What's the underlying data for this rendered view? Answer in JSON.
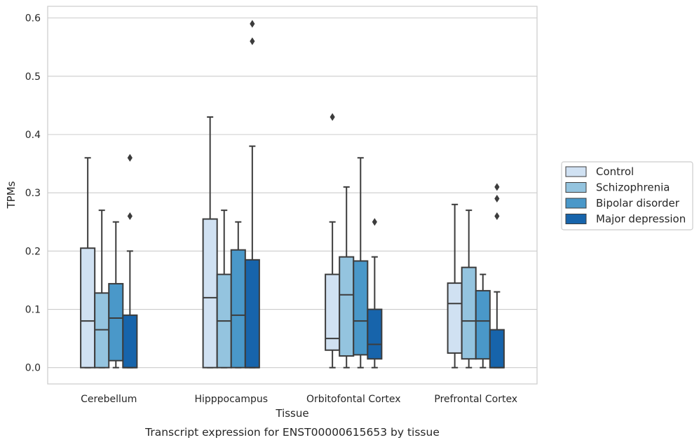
{
  "chart_data": {
    "type": "boxplot",
    "title": "",
    "caption": "Transcript expression for ENST00000615653 by tissue",
    "xlabel": "Tissue",
    "ylabel": "TPMs",
    "ylim": [
      -0.028,
      0.62
    ],
    "yticks": [
      0.0,
      0.1,
      0.2,
      0.3,
      0.4,
      0.5,
      0.6
    ],
    "ytick_labels": [
      "0.0",
      "0.1",
      "0.2",
      "0.3",
      "0.4",
      "0.5",
      "0.6"
    ],
    "grid": "horizontal",
    "legend_position": "right",
    "categories": [
      "Cerebellum",
      "Hipppocampus",
      "Orbitofontal Cortex",
      "Prefrontal Cortex"
    ],
    "series": [
      {
        "name": "Control",
        "color": "#d0e1f2",
        "boxes": [
          {
            "whislo": 0.0,
            "q1": 0.0,
            "med": 0.08,
            "q3": 0.205,
            "whishi": 0.36,
            "fliers": []
          },
          {
            "whislo": 0.0,
            "q1": 0.0,
            "med": 0.12,
            "q3": 0.255,
            "whishi": 0.43,
            "fliers": []
          },
          {
            "whislo": 0.0,
            "q1": 0.03,
            "med": 0.05,
            "q3": 0.16,
            "whishi": 0.25,
            "fliers": [
              0.43
            ]
          },
          {
            "whislo": 0.0,
            "q1": 0.025,
            "med": 0.11,
            "q3": 0.145,
            "whishi": 0.28,
            "fliers": []
          }
        ]
      },
      {
        "name": "Schizophrenia",
        "color": "#94c4df",
        "boxes": [
          {
            "whislo": 0.0,
            "q1": 0.0,
            "med": 0.065,
            "q3": 0.128,
            "whishi": 0.27,
            "fliers": []
          },
          {
            "whislo": 0.0,
            "q1": 0.0,
            "med": 0.08,
            "q3": 0.16,
            "whishi": 0.27,
            "fliers": []
          },
          {
            "whislo": 0.0,
            "q1": 0.02,
            "med": 0.125,
            "q3": 0.19,
            "whishi": 0.31,
            "fliers": []
          },
          {
            "whislo": 0.0,
            "q1": 0.015,
            "med": 0.08,
            "q3": 0.172,
            "whishi": 0.27,
            "fliers": []
          }
        ]
      },
      {
        "name": "Bipolar disorder",
        "color": "#4a98c9",
        "boxes": [
          {
            "whislo": 0.0,
            "q1": 0.012,
            "med": 0.085,
            "q3": 0.144,
            "whishi": 0.25,
            "fliers": []
          },
          {
            "whislo": 0.0,
            "q1": 0.0,
            "med": 0.09,
            "q3": 0.202,
            "whishi": 0.25,
            "fliers": []
          },
          {
            "whislo": 0.0,
            "q1": 0.022,
            "med": 0.08,
            "q3": 0.183,
            "whishi": 0.36,
            "fliers": []
          },
          {
            "whislo": 0.0,
            "q1": 0.015,
            "med": 0.08,
            "q3": 0.132,
            "whishi": 0.16,
            "fliers": []
          }
        ]
      },
      {
        "name": "Major depression",
        "color": "#1764ab",
        "boxes": [
          {
            "whislo": 0.0,
            "q1": 0.0,
            "med": 0.0,
            "q3": 0.09,
            "whishi": 0.2,
            "fliers": [
              0.26,
              0.36
            ]
          },
          {
            "whislo": 0.0,
            "q1": 0.0,
            "med": 0.0,
            "q3": 0.185,
            "whishi": 0.38,
            "fliers": [
              0.56,
              0.59
            ]
          },
          {
            "whislo": 0.0,
            "q1": 0.015,
            "med": 0.04,
            "q3": 0.1,
            "whishi": 0.19,
            "fliers": [
              0.25
            ]
          },
          {
            "whislo": 0.0,
            "q1": 0.0,
            "med": 0.0,
            "q3": 0.065,
            "whishi": 0.13,
            "fliers": [
              0.26,
              0.29,
              0.31
            ]
          }
        ]
      }
    ]
  }
}
